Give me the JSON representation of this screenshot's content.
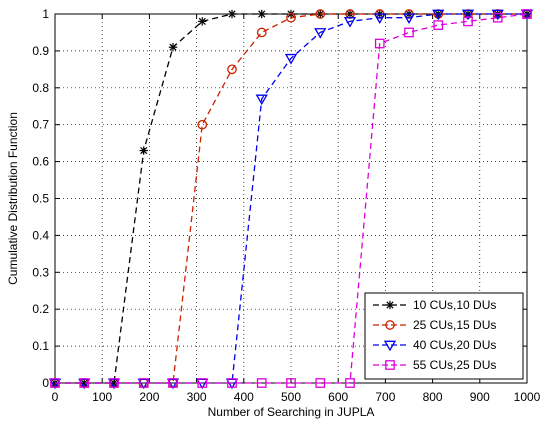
{
  "chart_data": {
    "type": "line",
    "title": "",
    "xlabel": "Number of Searching in JUPLA",
    "ylabel": "Cumulative Distribution Function",
    "xlim": [
      0,
      1000
    ],
    "ylim": [
      0,
      1
    ],
    "xticks": [
      0,
      100,
      200,
      300,
      400,
      500,
      600,
      700,
      800,
      900,
      1000
    ],
    "yticks": [
      0,
      0.1,
      0.2,
      0.3,
      0.4,
      0.5,
      0.6,
      0.7,
      0.8,
      0.9,
      1
    ],
    "xtick_labels": [
      "0",
      "100",
      "200",
      "300",
      "400",
      "500",
      "600",
      "700",
      "800",
      "900",
      "1000"
    ],
    "ytick_labels": [
      "0",
      "0.1",
      "0.2",
      "0.3",
      "0.4",
      "0.5",
      "0.6",
      "0.7",
      "0.8",
      "0.9",
      "1"
    ],
    "grid": true,
    "legend_position": "bottom-right",
    "series": [
      {
        "name": "10 CUs,10 DUs",
        "color": "#000000",
        "marker": "star",
        "line_style": "dashed",
        "x": [
          0,
          62,
          125,
          188,
          250,
          312,
          375,
          438,
          500,
          562,
          625,
          688,
          750,
          812,
          875,
          938,
          1000
        ],
        "y": [
          0,
          0,
          0,
          0.63,
          0.91,
          0.98,
          1,
          1,
          1,
          1,
          1,
          1,
          1,
          1,
          1,
          1,
          1
        ]
      },
      {
        "name": "25 CUs,15 DUs",
        "color": "#cc2200",
        "marker": "circle",
        "line_style": "dashed",
        "x": [
          0,
          62,
          125,
          188,
          250,
          312,
          375,
          438,
          500,
          562,
          625,
          688,
          750,
          812,
          875,
          938,
          1000
        ],
        "y": [
          0,
          0,
          0,
          0,
          0,
          0.7,
          0.85,
          0.95,
          0.99,
          1,
          1,
          1,
          1,
          1,
          1,
          1,
          1
        ]
      },
      {
        "name": "40 CUs,20 DUs",
        "color": "#0000ee",
        "marker": "triangle-down",
        "line_style": "dashed",
        "x": [
          0,
          62,
          125,
          188,
          250,
          312,
          375,
          438,
          500,
          562,
          625,
          688,
          750,
          812,
          875,
          938,
          1000
        ],
        "y": [
          0,
          0,
          0,
          0,
          0,
          0,
          0,
          0.77,
          0.88,
          0.95,
          0.98,
          0.99,
          0.99,
          1,
          1,
          1,
          1
        ]
      },
      {
        "name": "55 CUs,25 DUs",
        "color": "#dd00dd",
        "marker": "square",
        "line_style": "dashed",
        "x": [
          0,
          62,
          125,
          188,
          250,
          312,
          375,
          438,
          500,
          562,
          625,
          688,
          750,
          812,
          875,
          938,
          1000
        ],
        "y": [
          0,
          0,
          0,
          0,
          0,
          0,
          0,
          0,
          0,
          0,
          0,
          0.92,
          0.95,
          0.97,
          0.98,
          0.99,
          1
        ]
      }
    ]
  }
}
